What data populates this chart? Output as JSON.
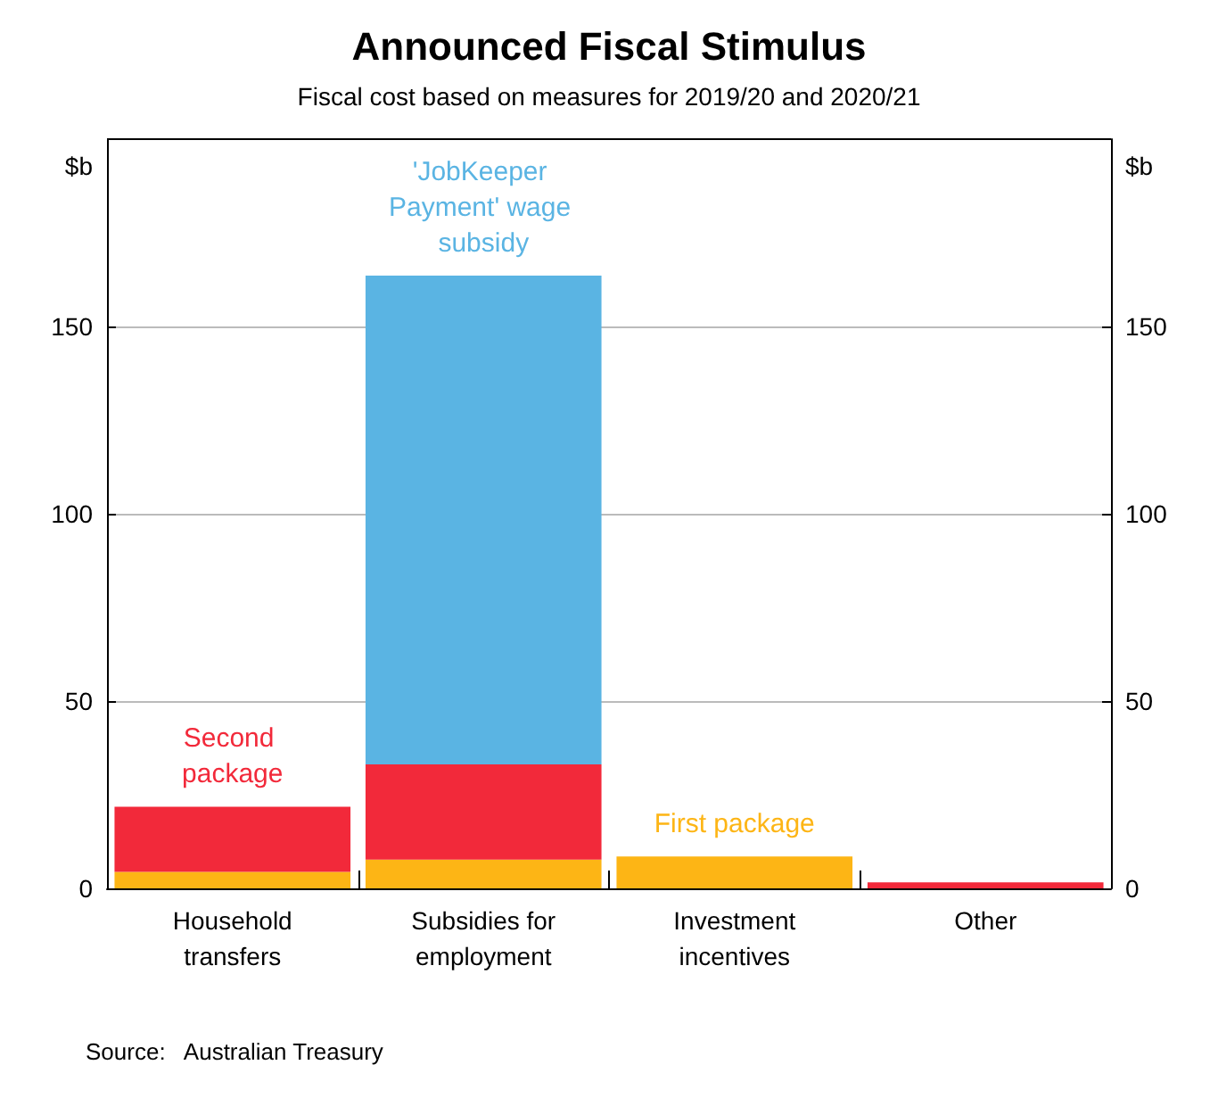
{
  "chart_data": {
    "type": "bar",
    "title": "Announced Fiscal Stimulus",
    "subtitle": "Fiscal cost based on measures for 2019/20 and 2020/21",
    "ylabel": "$b",
    "y2label": "$b",
    "categories": [
      "Household\ntransfers",
      "Subsidies for\nemployment",
      "Investment\nincentives",
      "Other"
    ],
    "stacked": true,
    "series": [
      {
        "name": "First package",
        "color": "#fdb515",
        "values": [
          4.4,
          7.7,
          8.5,
          0
        ]
      },
      {
        "name": "Second package",
        "color": "#f2293a",
        "values": [
          17.4,
          25.4,
          0,
          1.6
        ]
      },
      {
        "name": "'JobKeeper Payment' wage subsidy",
        "color": "#5ab4e3",
        "values": [
          0,
          130.5,
          0,
          0
        ]
      }
    ],
    "ylim": [
      0,
      200
    ],
    "yticks": [
      0,
      50,
      100,
      150
    ],
    "y2lim": [
      0,
      200
    ],
    "y2ticks": [
      0,
      50,
      100,
      150
    ],
    "grid": "y",
    "legend": false,
    "annotations": [
      "Source:   Australian Treasury"
    ]
  }
}
